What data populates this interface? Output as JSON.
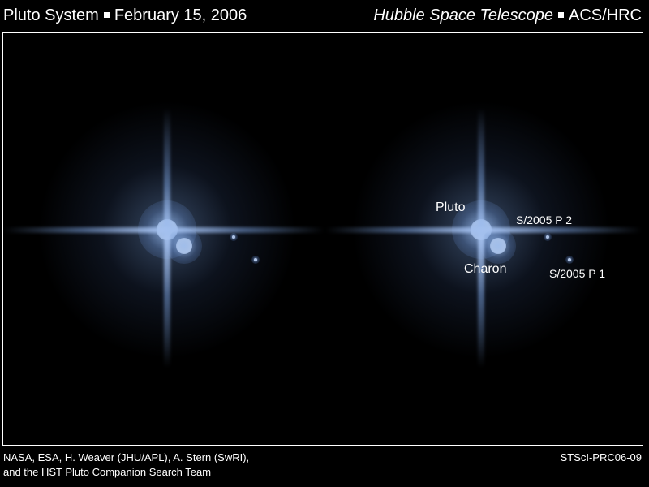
{
  "header": {
    "left_title": "Pluto System",
    "left_date": "February 15, 2006",
    "right_instrument_italic": "Hubble Space Telescope",
    "right_camera": "ACS/HRC"
  },
  "panels": {
    "right_labels": {
      "pluto": "Pluto",
      "charon": "Charon",
      "p2": "S/2005 P 2",
      "p1": "S/2005 P 1"
    }
  },
  "footer": {
    "credit_line1": "NASA, ESA, H. Weaver (JHU/APL), A. Stern (SwRI),",
    "credit_line2": "and the HST Pluto Companion Search Team",
    "release_id": "STScI-PRC06-09"
  },
  "colors": {
    "background": "#000000",
    "glow": "#8fb4e6",
    "text": "#ffffff"
  }
}
